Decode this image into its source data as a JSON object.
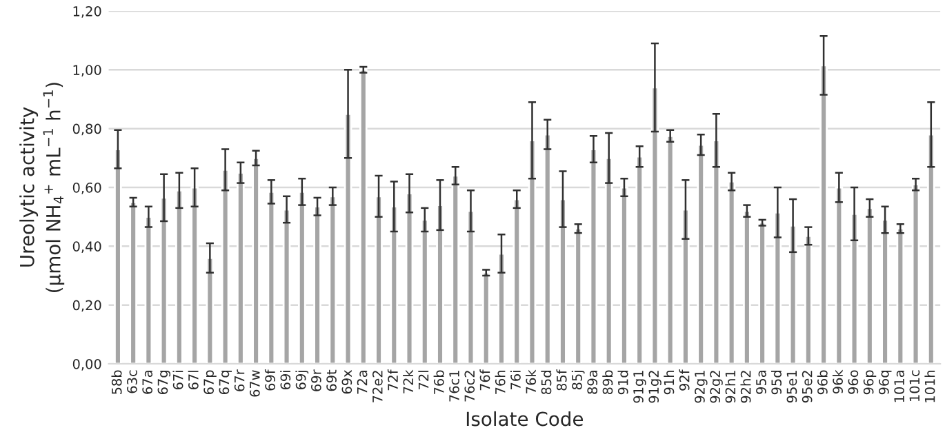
{
  "chart_data": {
    "type": "bar",
    "xlabel": "Isolate Code",
    "ylabel": "Ureolytic activity\n(µmol NH$_{4}$$^{+}$ mL$^{−1}$ h$^{−1}$)",
    "categories": [
      "58b",
      "63c",
      "67a",
      "67g",
      "67i",
      "67l",
      "67p",
      "67q",
      "67r",
      "67w",
      "69f",
      "69i",
      "69j",
      "69r",
      "69t",
      "69x",
      "72a",
      "72e2",
      "72f",
      "72k",
      "72l",
      "76b",
      "76c1",
      "76c2",
      "76f",
      "76h",
      "76i",
      "76k",
      "85d",
      "85f",
      "85j",
      "89a",
      "89b",
      "91d",
      "91g1",
      "91g2",
      "91h",
      "92f",
      "92g1",
      "92g2",
      "92h1",
      "92h2",
      "95a",
      "95d",
      "95e1",
      "95e2",
      "96b",
      "96k",
      "96o",
      "96p",
      "96q",
      "101a",
      "101c",
      "101h"
    ],
    "values": [
      0.73,
      0.55,
      0.5,
      0.565,
      0.59,
      0.6,
      0.36,
      0.66,
      0.65,
      0.7,
      0.585,
      0.525,
      0.585,
      0.535,
      0.57,
      0.85,
      1.0,
      0.57,
      0.535,
      0.58,
      0.49,
      0.54,
      0.64,
      0.52,
      0.31,
      0.375,
      0.56,
      0.76,
      0.78,
      0.56,
      0.46,
      0.73,
      0.7,
      0.6,
      0.705,
      0.94,
      0.775,
      0.525,
      0.745,
      0.76,
      0.62,
      0.52,
      0.48,
      0.515,
      0.47,
      0.435,
      1.015,
      0.6,
      0.51,
      0.53,
      0.49,
      0.46,
      0.61,
      0.78
    ],
    "errors": [
      0.065,
      0.015,
      0.035,
      0.08,
      0.06,
      0.065,
      0.05,
      0.07,
      0.035,
      0.025,
      0.04,
      0.045,
      0.045,
      0.03,
      0.03,
      0.15,
      0.01,
      0.07,
      0.085,
      0.065,
      0.04,
      0.085,
      0.03,
      0.07,
      0.01,
      0.065,
      0.03,
      0.13,
      0.05,
      0.095,
      0.015,
      0.045,
      0.085,
      0.03,
      0.035,
      0.15,
      0.02,
      0.1,
      0.035,
      0.09,
      0.03,
      0.02,
      0.01,
      0.085,
      0.09,
      0.03,
      0.1,
      0.05,
      0.09,
      0.03,
      0.045,
      0.015,
      0.02,
      0.11
    ],
    "color": "#a5a5a5",
    "ylim": [
      0,
      1.2
    ],
    "yticks": [
      {
        "value": 0,
        "label": "0,00"
      },
      {
        "value": 0.2,
        "label": "0,20"
      },
      {
        "value": 0.4,
        "label": "0,40"
      },
      {
        "value": 0.6,
        "label": "0,60"
      },
      {
        "value": 0.8,
        "label": "0,80"
      },
      {
        "value": 1.0,
        "label": "1,00"
      },
      {
        "value": 1.2,
        "label": "1,20"
      }
    ],
    "grid": "y"
  }
}
